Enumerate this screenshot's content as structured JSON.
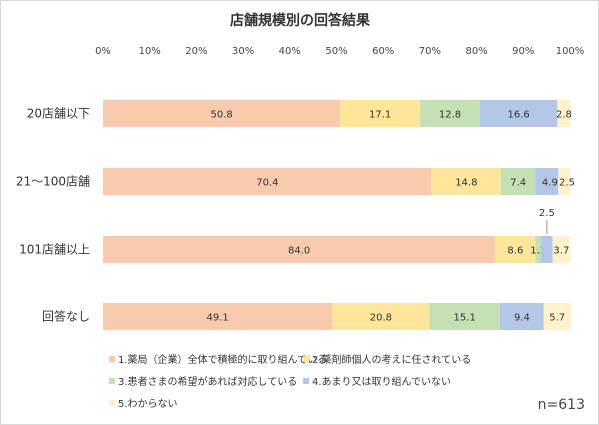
{
  "chart_data": {
    "type": "bar",
    "orientation": "horizontal",
    "stacked": "percent",
    "title": "店舗規模別の回答結果",
    "categories": [
      "20店舗以下",
      "21～100店舗",
      "101店舗以上",
      "回答なし"
    ],
    "series": [
      {
        "name": "1.薬局（企業）全体で積極的に取り組んでいる",
        "color": "#F8CBAD",
        "values": [
          50.8,
          70.4,
          84.0,
          49.1
        ],
        "labels": [
          "50.8",
          "70.4",
          "84.0",
          "49.1"
        ]
      },
      {
        "name": "2.薬剤師個人の考えに任されている",
        "color": "#FFE699",
        "values": [
          17.1,
          14.8,
          8.6,
          20.8
        ],
        "labels": [
          "17.1",
          "14.8",
          "8.6",
          "20.8"
        ]
      },
      {
        "name": "3.患者さまの希望があれば対応している",
        "color": "#C5E0B4",
        "values": [
          12.8,
          7.4,
          1.2,
          15.1
        ],
        "labels": [
          "12.8",
          "7.4",
          "1.2",
          "15.1"
        ]
      },
      {
        "name": "4.あまり又は取り組んでいない",
        "color": "#B4C7E7",
        "values": [
          16.6,
          4.9,
          2.5,
          9.4
        ],
        "labels": [
          "16.6",
          "4.9",
          "2.5",
          "9.4"
        ]
      },
      {
        "name": "5.わからない",
        "color": "#FFF2CC",
        "values": [
          2.8,
          2.5,
          3.7,
          5.7
        ],
        "labels": [
          "2.8",
          "2.5",
          "3.7",
          "5.7"
        ]
      }
    ],
    "xticks": [
      "0%",
      "10%",
      "20%",
      "30%",
      "40%",
      "50%",
      "60%",
      "70%",
      "80%",
      "90%",
      "100%"
    ],
    "xlim": [
      0,
      100
    ],
    "grid": false,
    "legend": "bottom"
  },
  "n_label": "n=613"
}
